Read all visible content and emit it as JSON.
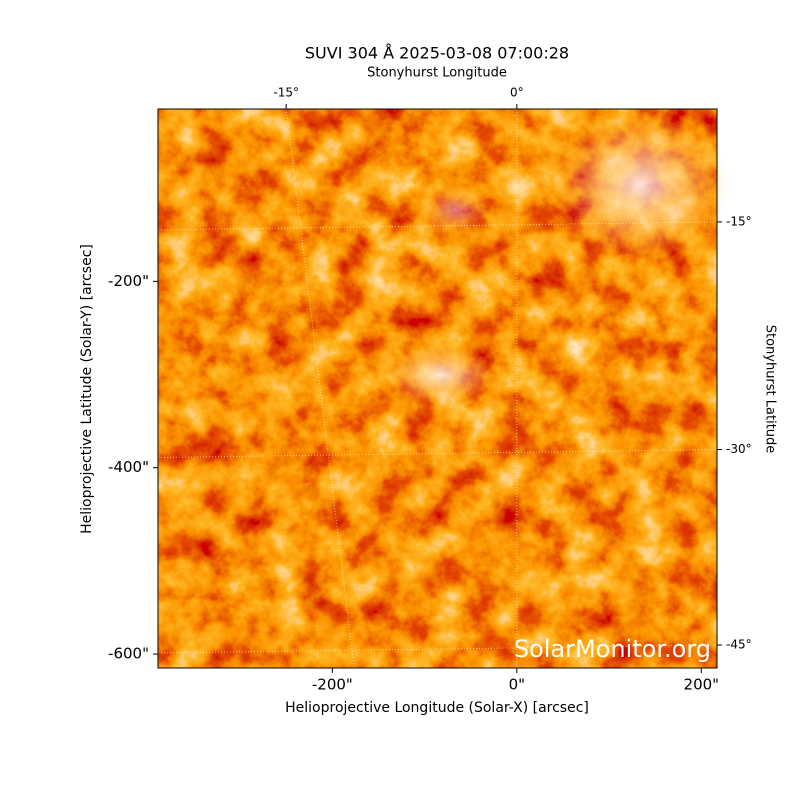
{
  "chart_data": {
    "type": "image",
    "title": "SUVI 304 Å 2025-03-08 07:00:28",
    "xlabel": "Helioprojective Longitude (Solar-X) [arcsec]",
    "ylabel": "Helioprojective Latitude (Solar-Y) [arcsec]",
    "x2label": "Stonyhurst Longitude",
    "y2label": "Stonyhurst Latitude",
    "watermark": "SolarMonitor.org",
    "xlim": [
      -389,
      217
    ],
    "ylim": [
      -615,
      -15
    ],
    "xticks": [
      {
        "value": -200,
        "label": "-200\""
      },
      {
        "value": 0,
        "label": "0\""
      },
      {
        "value": 200,
        "label": "200\""
      }
    ],
    "yticks": [
      {
        "value": -600,
        "label": "-600\""
      },
      {
        "value": -400,
        "label": "-400\""
      },
      {
        "value": -200,
        "label": "-200\""
      }
    ],
    "x2ticks": [
      {
        "value": -15,
        "label": "-15°"
      },
      {
        "value": 0,
        "label": "0°"
      }
    ],
    "y2ticks": [
      {
        "value": -15,
        "label": "-15°"
      },
      {
        "value": -30,
        "label": "-30°"
      },
      {
        "value": -45,
        "label": "-45°"
      }
    ],
    "grid": true
  }
}
